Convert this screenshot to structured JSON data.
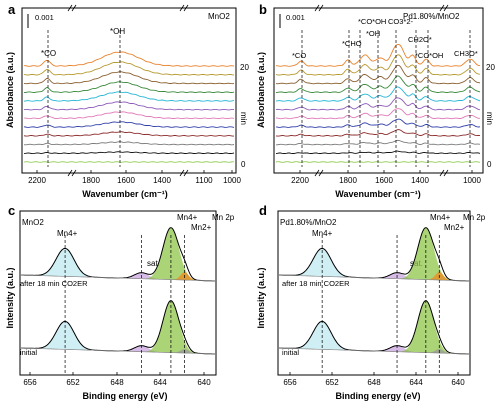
{
  "panels": [
    {
      "id": "a",
      "letter": "a",
      "material": "MnO2",
      "type": "line",
      "scale_label": "0.001",
      "xlabel": "Wavenumber  (cm⁻¹)",
      "ylabel": "Absorbance (a.u.)",
      "x_ticks": [
        "2200",
        "1800",
        "1600",
        "1400",
        "1100",
        "1000"
      ],
      "time_axis": {
        "label": "min",
        "top": "20",
        "bottom": "0"
      },
      "annotations": [
        "*CO",
        "*OH"
      ],
      "series_colors": [
        "#e8822b",
        "#b79a30",
        "#8a5f2f",
        "#3a8a3c",
        "#26b6d6",
        "#8d5ab9",
        "#e07ab8",
        "#2f3fa8",
        "#8a2a2a",
        "#7a7a7a",
        "#111111",
        "#93cc57"
      ]
    },
    {
      "id": "b",
      "letter": "b",
      "material": "Pd1.80%/MnO2",
      "type": "line",
      "scale_label": "0.001",
      "xlabel": "Wavenumber  (cm⁻¹)",
      "ylabel": "Absorbance (a.u.)",
      "x_ticks": [
        "2200",
        "1800",
        "1600",
        "1400",
        "1000"
      ],
      "time_axis": {
        "label": "min",
        "top": "20",
        "bottom": "0"
      },
      "annotations": [
        "*CO",
        "*CHO",
        "*CO*OH",
        "*OH",
        "CO3*2-",
        "CH2O*",
        "*CO*OH",
        "CH3O*"
      ],
      "series_colors": [
        "#e8822b",
        "#b79a30",
        "#8a5f2f",
        "#3a8a3c",
        "#26b6d6",
        "#8d5ab9",
        "#e07ab8",
        "#2f3fa8",
        "#8a2a2a",
        "#7a7a7a",
        "#111111",
        "#93cc57"
      ]
    },
    {
      "id": "c",
      "letter": "c",
      "material": "MnO2",
      "type": "xps",
      "xlabel": "Binding energy (eV)",
      "ylabel": "Intensity (a.u.)",
      "x_ticks": [
        "656",
        "652",
        "648",
        "644",
        "640"
      ],
      "labels": {
        "mn4_left": "Mn4+",
        "mn4_right": "Mn4+",
        "mn2": "Mn2+",
        "core": "Mn 2p",
        "sat": "sat.",
        "after": "after 18 min CO2ER",
        "initial": "initial"
      }
    },
    {
      "id": "d",
      "letter": "d",
      "material": "Pd1.80%/MnO2",
      "type": "xps",
      "xlabel": "Binding energy (eV)",
      "ylabel": "Intensity (a.u.)",
      "x_ticks": [
        "656",
        "652",
        "648",
        "644",
        "640"
      ],
      "labels": {
        "mn4_left": "Mn4+",
        "mn4_right": "Mn4+",
        "mn2": "Mn2+",
        "core": "Mn 2p",
        "sat": "sat.",
        "after": "after 18 min CO2ER",
        "initial": "initial"
      }
    }
  ],
  "chart_data": [
    {
      "type": "line",
      "panel": "a",
      "title": "MnO2",
      "xlabel": "Wavenumber (cm⁻¹)",
      "ylabel": "Absorbance (a.u.)",
      "x_breaks": [
        [
          1800,
          1400
        ],
        [
          1100,
          1000
        ]
      ],
      "time_range_min": [
        0,
        20
      ],
      "series_count": 12,
      "peaks_cm-1": [
        {
          "label": "*CO",
          "x": 2150
        },
        {
          "label": "*OH",
          "x": 1640
        }
      ]
    },
    {
      "type": "line",
      "panel": "b",
      "title": "Pd1.80%/MnO2",
      "xlabel": "Wavenumber (cm⁻¹)",
      "ylabel": "Absorbance (a.u.)",
      "time_range_min": [
        0,
        20
      ],
      "series_count": 12,
      "peaks_cm-1": [
        {
          "label": "*CO",
          "x": 2150
        },
        {
          "label": "*CHO",
          "x": 1730
        },
        {
          "label": "*CO*OH",
          "x": 1700
        },
        {
          "label": "*OH",
          "x": 1640
        },
        {
          "label": "CO3*2-",
          "x": 1540
        },
        {
          "label": "CH2O*",
          "x": 1440
        },
        {
          "label": "*CO*OH",
          "x": 1400
        },
        {
          "label": "CH3O*",
          "x": 1060
        }
      ]
    },
    {
      "type": "line",
      "panel": "c",
      "title": "MnO2",
      "xlabel": "Binding energy (eV)",
      "ylabel": "Intensity (a.u.)",
      "xlim": [
        658,
        639
      ],
      "series": [
        {
          "name": "after 18 min CO2ER"
        },
        {
          "name": "initial"
        }
      ],
      "reference_lines_eV": [
        {
          "label": "Mn4+",
          "x": 653.6
        },
        {
          "label": "sat.",
          "x": 644.2
        },
        {
          "label": "Mn4+",
          "x": 642.1
        },
        {
          "label": "Mn2+",
          "x": 640.8
        }
      ]
    },
    {
      "type": "line",
      "panel": "d",
      "title": "Pd1.80%/MnO2",
      "xlabel": "Binding energy (eV)",
      "ylabel": "Intensity (a.u.)",
      "xlim": [
        658,
        639
      ],
      "series": [
        {
          "name": "after 18 min CO2ER"
        },
        {
          "name": "initial"
        }
      ],
      "reference_lines_eV": [
        {
          "label": "Mn4+",
          "x": 653.6
        },
        {
          "label": "sat.",
          "x": 644.2
        },
        {
          "label": "Mn4+",
          "x": 642.1
        },
        {
          "label": "Mn2+",
          "x": 640.8
        }
      ]
    }
  ]
}
